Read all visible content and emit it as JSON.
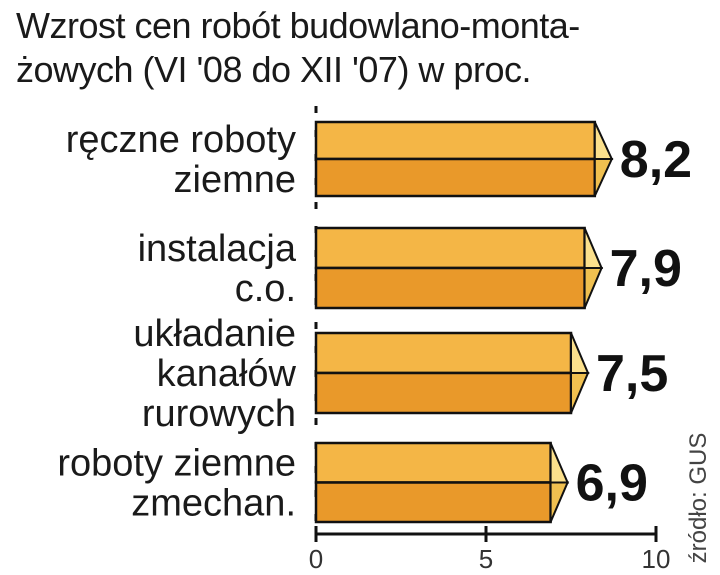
{
  "chart_data": {
    "type": "bar",
    "orientation": "horizontal",
    "title_lines": [
      "Wzrost cen robót budowlano-monta-",
      "żowych (VI '08 do XII '07) w proc."
    ],
    "categories": [
      [
        "ręczne roboty",
        "ziemne"
      ],
      [
        "instalacja",
        "c.o."
      ],
      [
        "układanie",
        "kanałów",
        "rurowych"
      ],
      [
        "roboty ziemne",
        "zmechan."
      ]
    ],
    "values": [
      8.2,
      7.9,
      7.5,
      6.9
    ],
    "value_labels": [
      "8,2",
      "7,9",
      "7,5",
      "6,9"
    ],
    "xlim": [
      0,
      10
    ],
    "xticks": [
      0,
      5,
      10
    ],
    "xtick_labels": [
      "0",
      "5",
      "10"
    ],
    "source": "źródło: GUS",
    "colors": {
      "bar_top": "#f4b646",
      "bar_bottom": "#e9992a",
      "bar_cap": "#fbe08c",
      "bar_cap_dark": "#f0c050",
      "bar_edge": "#111111"
    }
  }
}
